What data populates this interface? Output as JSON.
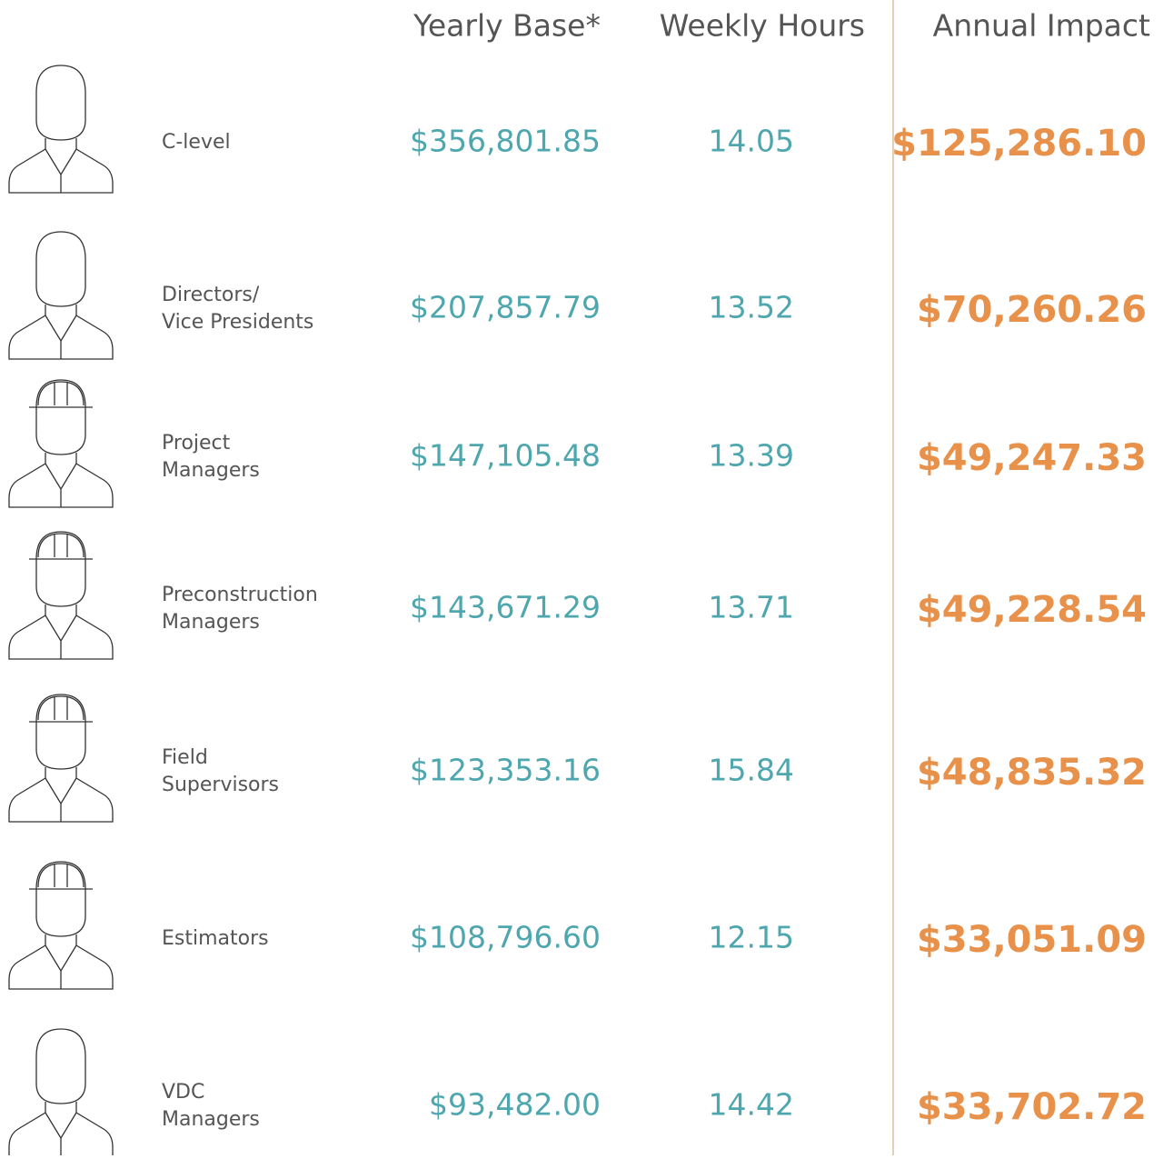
{
  "header": {
    "columns": [
      "Yearly Base*",
      "Weekly Hours",
      "Annual Impact"
    ]
  },
  "rows": [
    {
      "role": [
        "C-level"
      ],
      "yearly_base": "$356,801.85",
      "weekly_hours": "14.05",
      "annual_impact": "$125,286.10"
    },
    {
      "role": [
        "Directors/",
        "Vice Presidents"
      ],
      "yearly_base": "$207,857.79",
      "weekly_hours": "13.52",
      "annual_impact": "$70,260.26"
    },
    {
      "role": [
        "Project",
        "Managers"
      ],
      "yearly_base": "$147,105.48",
      "weekly_hours": "13.39",
      "annual_impact": "$49,247.33"
    },
    {
      "role": [
        "Preconstruction",
        "Managers"
      ],
      "yearly_base": "$143,671.29",
      "weekly_hours": "13.71",
      "annual_impact": "$49,228.54"
    },
    {
      "role": [
        "Field",
        "Supervisors"
      ],
      "yearly_base": "$123,353.16",
      "weekly_hours": "15.84",
      "annual_impact": "$48,835.32"
    },
    {
      "role": [
        "Estimators"
      ],
      "yearly_base": "$108,796.60",
      "weekly_hours": "12.15",
      "annual_impact": "$33,051.09"
    },
    {
      "role": [
        "VDC",
        "Managers"
      ],
      "yearly_base": "$93,482.00",
      "weekly_hours": "14.42",
      "annual_impact": "$33,702.72"
    }
  ]
}
